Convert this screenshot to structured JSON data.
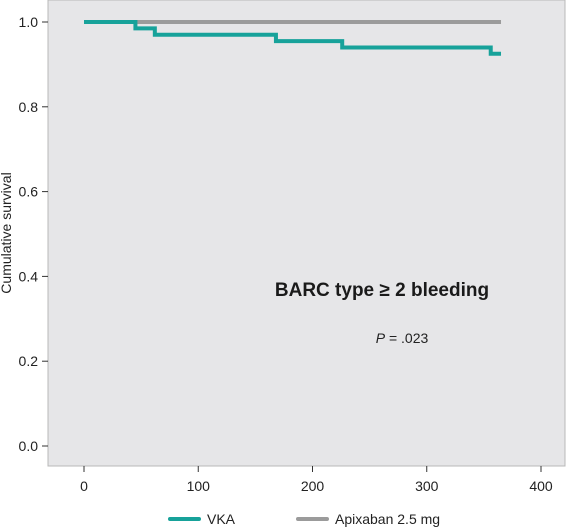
{
  "chart_data": {
    "type": "line",
    "line_style": "step",
    "ylabel": "Cumulative survival",
    "xlabel": "",
    "xlim": [
      -30,
      400
    ],
    "ylim": [
      -0.05,
      1.05
    ],
    "x_ticks": [
      0,
      100,
      200,
      300,
      400
    ],
    "y_ticks": [
      0.0,
      0.2,
      0.4,
      0.6,
      0.8,
      1.0
    ],
    "y_tick_labels": [
      "0.0",
      "0.2",
      "0.4",
      "0.6",
      "0.8",
      "1.0"
    ],
    "grid": false,
    "background_color": "#e6e6e8",
    "legend_position": "bottom",
    "series": [
      {
        "name": "VKA",
        "color": "#17a29a",
        "x": [
          0,
          45,
          62,
          168,
          226,
          356,
          365
        ],
        "y": [
          1.0,
          0.985,
          0.97,
          0.955,
          0.94,
          0.925,
          0.925
        ]
      },
      {
        "name": "Apixaban 2.5 mg",
        "color": "#9b9b9b",
        "x": [
          0,
          365
        ],
        "y": [
          1.0,
          1.0
        ]
      }
    ],
    "annotations": {
      "title_prefix": "BARC type ",
      "title_symbol": "≥",
      "title_suffix": " 2 bleeding",
      "p_label": "P",
      "p_value": " = .023"
    }
  }
}
